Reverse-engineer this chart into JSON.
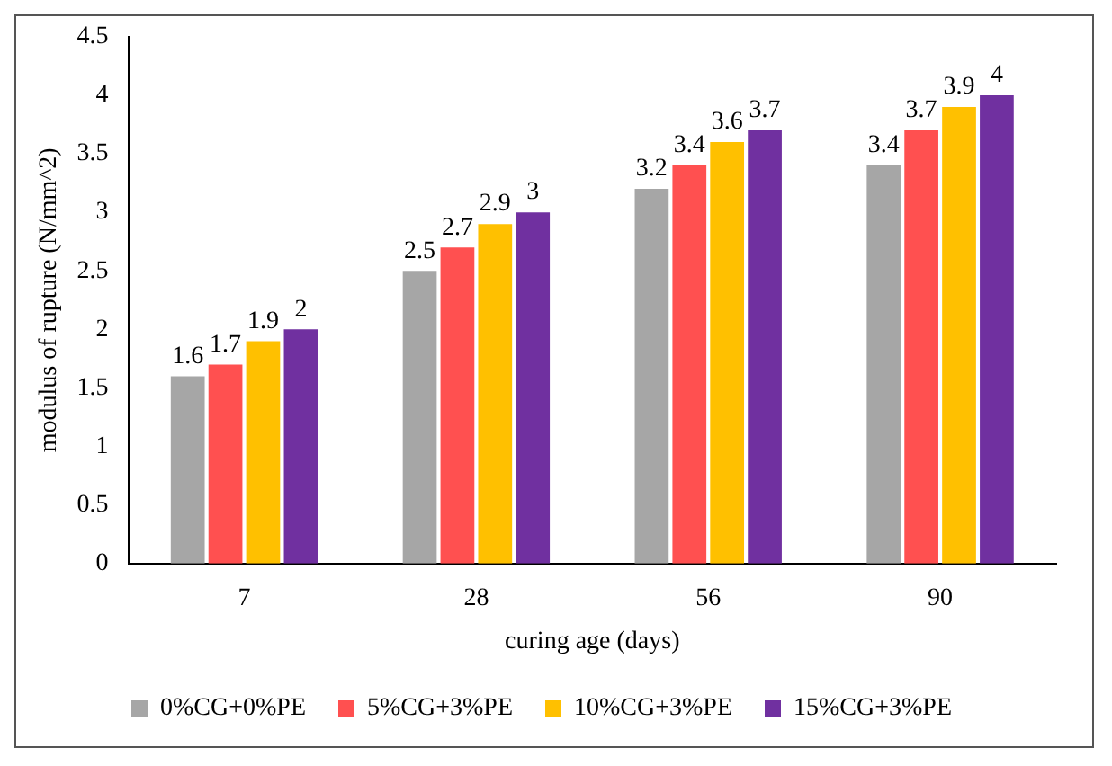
{
  "chart_data": {
    "type": "bar",
    "xlabel": "curing age (days)",
    "ylabel": "modulus of rupture (N/mm^2)",
    "categories": [
      "7",
      "28",
      "56",
      "90"
    ],
    "series": [
      {
        "name": "0%CG+0%PE",
        "color": "#a6a6a6",
        "values": [
          1.6,
          2.5,
          3.2,
          3.4
        ]
      },
      {
        "name": "5%CG+3%PE",
        "color": "#ff5050",
        "values": [
          1.7,
          2.7,
          3.4,
          3.7
        ]
      },
      {
        "name": "10%CG+3%PE",
        "color": "#ffc000",
        "values": [
          1.9,
          2.9,
          3.6,
          3.9
        ]
      },
      {
        "name": "15%CG+3%PE",
        "color": "#7030a0",
        "values": [
          2,
          3,
          3.7,
          4
        ]
      }
    ],
    "ylim": [
      0,
      4.5
    ],
    "yticks": [
      0,
      0.5,
      1,
      1.5,
      2,
      2.5,
      3,
      3.5,
      4,
      4.5
    ],
    "grid": false,
    "legend": "bottom",
    "data_labels": true
  }
}
